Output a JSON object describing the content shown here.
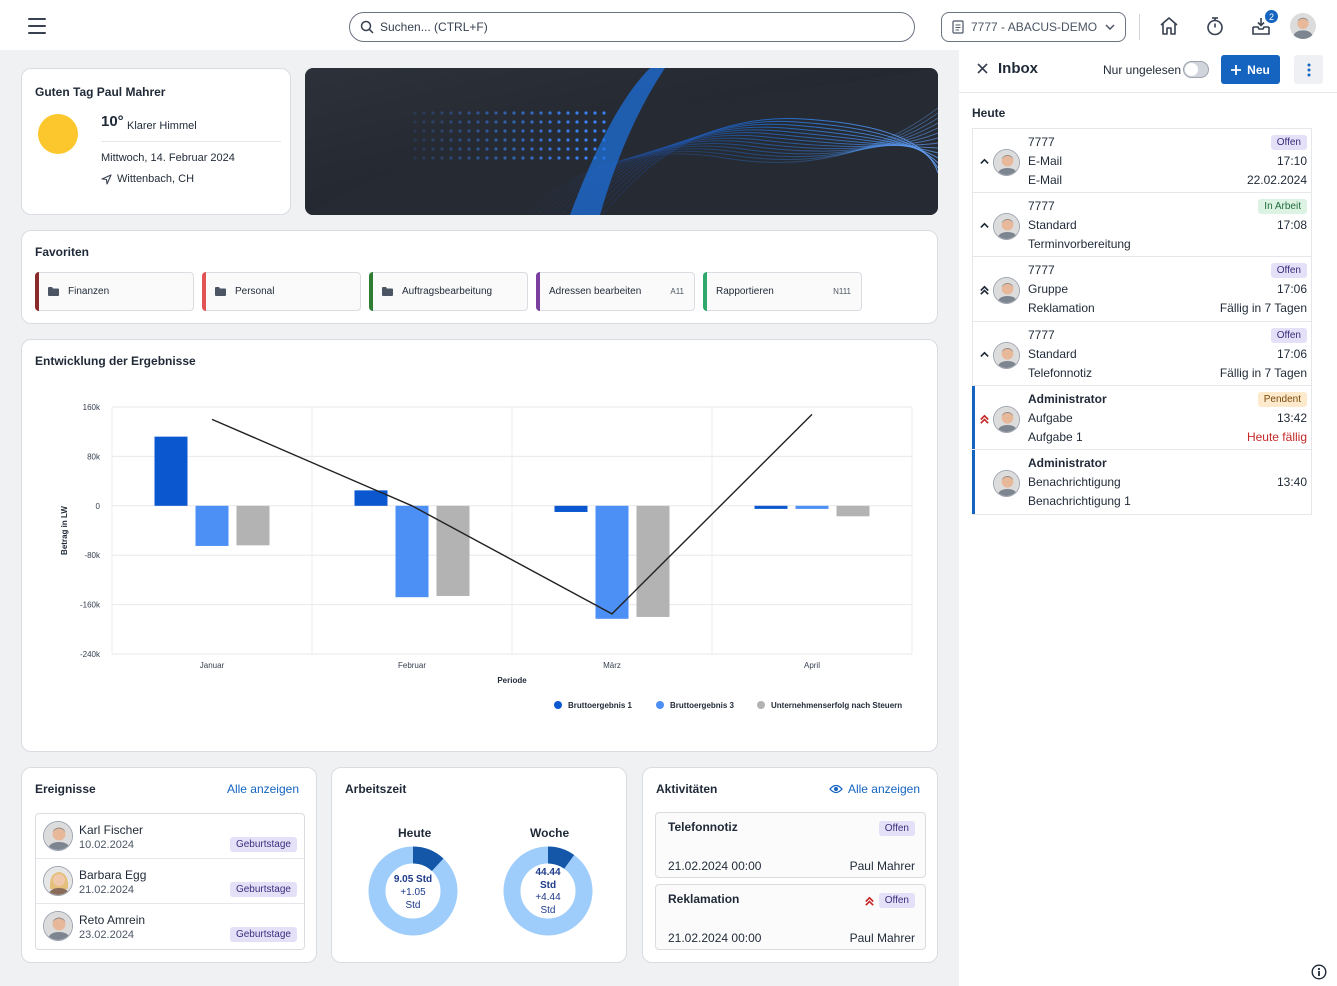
{
  "header": {
    "search_placeholder": "Suchen... (CTRL+F)",
    "tenant": "7777 - ABACUS-DEMO",
    "notification_count": "2"
  },
  "greeting": {
    "title": "Guten Tag Paul Mahrer",
    "temperature": "10°",
    "condition": "Klarer Himmel",
    "date": "Mittwoch, 14. Februar 2024",
    "location": "Wittenbach, CH"
  },
  "favorites": {
    "title": "Favoriten",
    "items": [
      {
        "label": "Finanzen",
        "code": "",
        "color": "#8b2a2a"
      },
      {
        "label": "Personal",
        "code": "",
        "color": "#e25353"
      },
      {
        "label": "Auftragsbearbeitung",
        "code": "",
        "color": "#2e7d32"
      },
      {
        "label": "Adressen bearbeiten",
        "code": "A11",
        "color": "#7b3fa0"
      },
      {
        "label": "Rapportieren",
        "code": "N111",
        "color": "#2ea86b"
      }
    ]
  },
  "results": {
    "title": "Entwicklung der Ergebnisse"
  },
  "chart_data": {
    "type": "bar",
    "categories": [
      "Januar",
      "Februar",
      "März",
      "April"
    ],
    "series": [
      {
        "name": "Bruttoergebnis 1",
        "color": "#0b57d0",
        "values": [
          112000,
          25000,
          -10000,
          -5000
        ]
      },
      {
        "name": "Bruttoergebnis 3",
        "color": "#4c8ff5",
        "values": [
          -65000,
          -148000,
          -183000,
          -5000
        ]
      },
      {
        "name": "Unternehmenserfolg nach Steuern",
        "color": "#b3b3b3",
        "values": [
          -64000,
          -146000,
          -180000,
          -17000
        ]
      }
    ],
    "line": {
      "values": [
        140000,
        0,
        -175000,
        148000
      ]
    },
    "xlabel": "Periode",
    "ylabel": "Betrag in LW",
    "ylim": [
      -240000,
      160000
    ],
    "yticks": [
      {
        "value": 160000,
        "label": "160k"
      },
      {
        "value": 80000,
        "label": "80k"
      },
      {
        "value": 0,
        "label": "0"
      },
      {
        "value": -80000,
        "label": "-80k"
      },
      {
        "value": -160000,
        "label": "-160k"
      },
      {
        "value": -240000,
        "label": "-240k"
      }
    ],
    "grid": true,
    "legend": "bottom-right"
  },
  "events": {
    "title": "Ereignisse",
    "show_all": "Alle anzeigen",
    "items": [
      {
        "name": "Karl Fischer",
        "date": "10.02.2024",
        "tag": "Geburtstage"
      },
      {
        "name": "Barbara Egg",
        "date": "21.02.2024",
        "tag": "Geburtstage"
      },
      {
        "name": "Reto Amrein",
        "date": "23.02.2024",
        "tag": "Geburtstage"
      }
    ]
  },
  "worktime": {
    "title": "Arbeitszeit",
    "today": {
      "label": "Heute",
      "value": "9.05 Std",
      "delta": "+1.05",
      "unit": "Std",
      "fraction": 0.12
    },
    "week": {
      "label": "Woche",
      "value": "44.44",
      "unit1": "Std",
      "delta": "+4.44",
      "unit2": "Std",
      "fraction": 0.1
    }
  },
  "activities": {
    "title": "Aktivitäten",
    "show_all": "Alle anzeigen",
    "items": [
      {
        "title": "Telefonnotiz",
        "status": "Offen",
        "date": "21.02.2024 00:00",
        "user": "Paul Mahrer"
      },
      {
        "title": "Reklamation",
        "status": "Offen",
        "date": "21.02.2024 00:00",
        "user": "Paul Mahrer"
      }
    ]
  },
  "inbox": {
    "title": "Inbox",
    "unread_label": "Nur ungelesen",
    "new_label": "Neu",
    "section": "Heute",
    "items": [
      {
        "line1": "7777",
        "line2": "E-Mail",
        "line3": "E-Mail",
        "status": "Offen",
        "time": "17:10",
        "due": "22.02.2024"
      },
      {
        "line1": "7777",
        "line2": "Standard",
        "line3": "Terminvorbereitung",
        "status": "In Arbeit",
        "time": "17:08",
        "due": ""
      },
      {
        "line1": "7777",
        "line2": "Gruppe",
        "line3": "Reklamation",
        "status": "Offen",
        "time": "17:06",
        "due": "Fällig in 7 Tagen"
      },
      {
        "line1": "7777",
        "line2": "Standard",
        "line3": "Telefonnotiz",
        "status": "Offen",
        "time": "17:06",
        "due": "Fällig in 7 Tagen"
      },
      {
        "line1": "Administrator",
        "line2": "Aufgabe",
        "line3": "Aufgabe 1",
        "status": "Pendent",
        "time": "13:42",
        "due": "Heute fällig"
      },
      {
        "line1": "Administrator",
        "line2": "Benachrichtigung",
        "line3": "Benachrichtigung 1",
        "status": "",
        "time": "13:40",
        "due": ""
      }
    ]
  }
}
